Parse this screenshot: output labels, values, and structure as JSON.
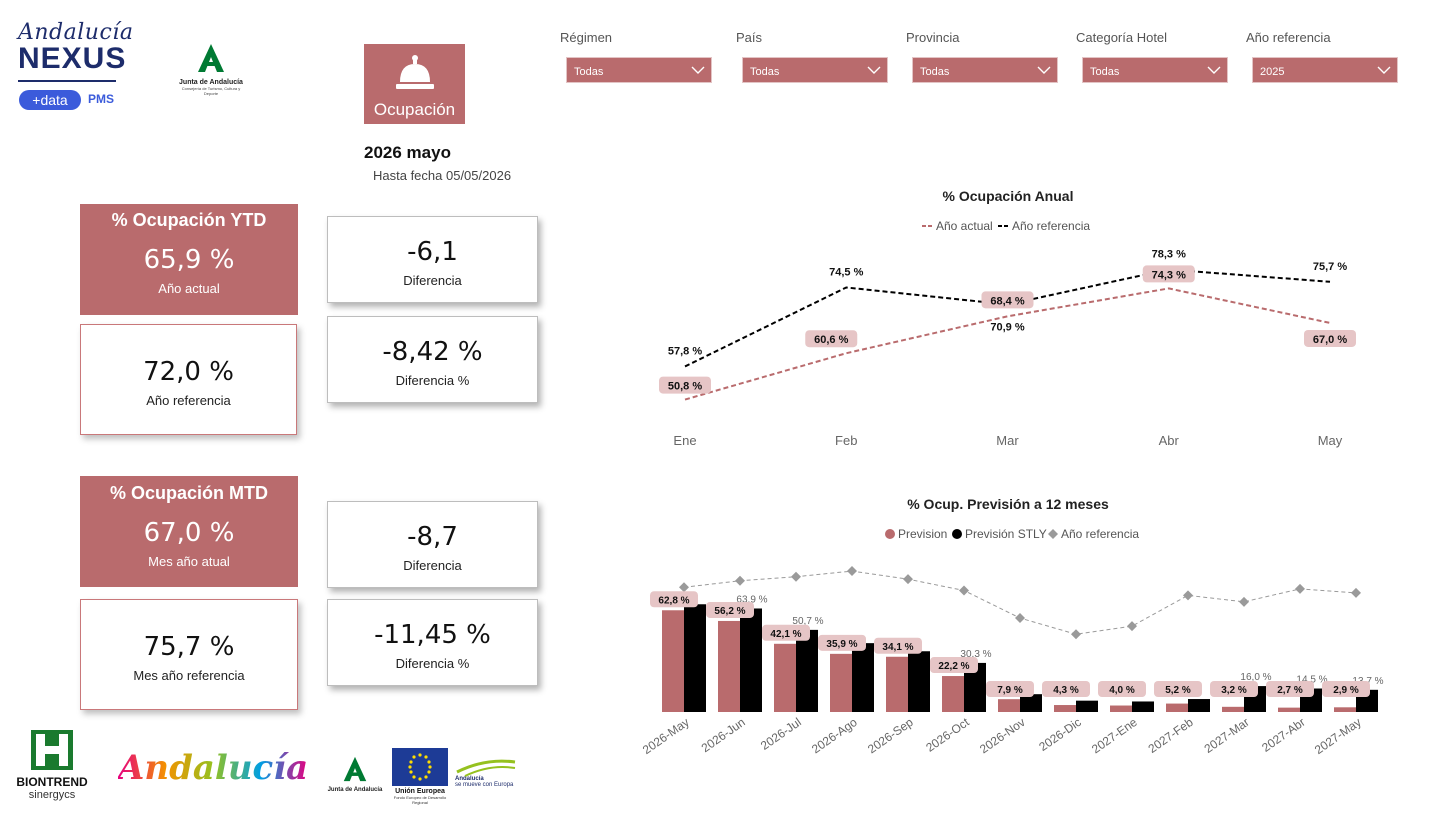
{
  "logos": {
    "andalucia_script": "Andalucía",
    "nexus": "NEXUS",
    "data_badge": "+data",
    "pms": "PMS",
    "junta": "Junta de Andalucía",
    "consejeria": "Consejería de Turismo, Cultura y Deporte",
    "biontrend": "BIONTREND",
    "synergics": "sinergycs",
    "andalucia_color": "Andalucía",
    "junta_bottom": "Junta de Andalucía",
    "ue": "Unión Europea",
    "feder": "Fondo Europeo de Desarrollo Regional",
    "mueve_1": "Andalucía",
    "mueve_2": "se mueve con Europa"
  },
  "section": {
    "label": "Ocupación",
    "icon": "service-bell-icon"
  },
  "header": {
    "period": "2026 mayo",
    "as_of": "Hasta fecha 05/05/2026"
  },
  "filters": [
    {
      "label": "Régimen",
      "value": "Todas"
    },
    {
      "label": "País",
      "value": "Todas"
    },
    {
      "label": "Provincia",
      "value": "Todas"
    },
    {
      "label": "Categoría Hotel",
      "value": "Todas"
    },
    {
      "label": "Año referencia",
      "value": "2025"
    }
  ],
  "kpis": {
    "ytd": {
      "title": "% Ocupación YTD",
      "actual_value": "65,9 %",
      "actual_label": "Año actual",
      "ref_value": "72,0 %",
      "ref_label": "Año referencia",
      "diff_value": "-6,1",
      "diff_label": "Diferencia",
      "diffpct_value": "-8,42 %",
      "diffpct_label": "Diferencia %"
    },
    "mtd": {
      "title": "% Ocupación MTD",
      "actual_value": "67,0 %",
      "actual_label": "Mes año atual",
      "ref_value": "75,7 %",
      "ref_label": "Mes año referencia",
      "diff_value": "-8,7",
      "diff_label": "Diferencia",
      "diffpct_value": "-11,45 %",
      "diffpct_label": "Diferencia %"
    }
  },
  "colors": {
    "accent": "#b96b6d",
    "label_bg": "#e6c5c6",
    "black": "#000000",
    "grey": "#9a9a9a"
  },
  "chart_data": [
    {
      "type": "line",
      "title": "% Ocupación Anual",
      "categories": [
        "Ene",
        "Feb",
        "Mar",
        "Abr",
        "May"
      ],
      "ylim": [
        45,
        82
      ],
      "series": [
        {
          "name": "Año actual",
          "values": [
            50.8,
            60.6,
            68.4,
            74.3,
            67.0
          ],
          "labels": [
            "50,8 %",
            "60,6 %",
            "68,4 %",
            "74,3 %",
            "67,0 %"
          ]
        },
        {
          "name": "Año referencia",
          "values": [
            57.8,
            74.5,
            70.9,
            78.3,
            75.7
          ],
          "labels": [
            "57,8 %",
            "74,5 %",
            "70,9 %",
            "78,3 %",
            "75,7 %"
          ]
        }
      ],
      "legend": "top"
    },
    {
      "type": "bar",
      "title": "% Ocup. Previsión a 12 meses",
      "categories": [
        "2026-May",
        "2026-Jun",
        "2026-Jul",
        "2026-Ago",
        "2026-Sep",
        "2026-Oct",
        "2026-Nov",
        "2026-Dic",
        "2027-Ene",
        "2027-Feb",
        "2027-Mar",
        "2027-Abr",
        "2027-May"
      ],
      "ylim": [
        0,
        100
      ],
      "series": [
        {
          "name": "Prevision",
          "values": [
            62.8,
            56.2,
            42.1,
            35.9,
            34.1,
            22.2,
            7.9,
            4.3,
            4.0,
            5.2,
            3.2,
            2.7,
            2.9
          ],
          "labels": [
            "62,8 %",
            "56,2 %",
            "42,1 %",
            "35,9 %",
            "34,1 %",
            "22,2 %",
            "7,9 %",
            "4,3 %",
            "4,0 %",
            "5,2 %",
            "3,2 %",
            "2,7 %",
            "2,9 %"
          ]
        },
        {
          "name": "Previsión STLY",
          "values": [
            66.5,
            63.9,
            50.7,
            42.5,
            37.5,
            30.3,
            11.0,
            7.0,
            6.5,
            8.0,
            16.0,
            14.5,
            13.7
          ],
          "labels": [
            "",
            "63,9 %",
            "50,7 %",
            "",
            "",
            "30,3 %",
            "",
            "",
            "",
            "",
            "16,0 %",
            "14,5 %",
            "13,7 %"
          ]
        },
        {
          "name": "Año referencia",
          "values": [
            77,
            81,
            83.5,
            87,
            82,
            75,
            58,
            48,
            53,
            72,
            68,
            76,
            73.5
          ]
        }
      ],
      "legend": "top"
    }
  ]
}
